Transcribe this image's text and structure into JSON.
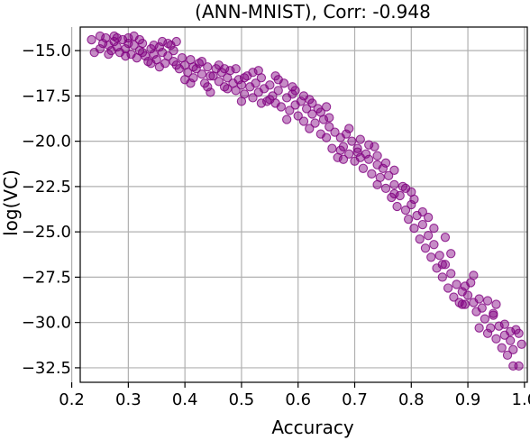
{
  "chart_data": {
    "type": "scatter",
    "title": "(ANN-MNIST), Corr: -0.948",
    "xlabel": "Accuracy",
    "ylabel": "log(VC)",
    "xlim": [
      0.215,
      1.005
    ],
    "ylim": [
      -33.3,
      -13.7
    ],
    "xticks": [
      0.2,
      0.3,
      0.4,
      0.5,
      0.6,
      0.7,
      0.8,
      0.9,
      1.0
    ],
    "xtick_labels": [
      "0.2",
      "0.3",
      "0.4",
      "0.5",
      "0.6",
      "0.7",
      "0.8",
      "0.9",
      "1.0"
    ],
    "yticks": [
      -15.0,
      -17.5,
      -20.0,
      -22.5,
      -25.0,
      -27.5,
      -30.0,
      -32.5
    ],
    "ytick_labels": [
      "−15.0",
      "−17.5",
      "−20.0",
      "−22.5",
      "−25.0",
      "−27.5",
      "−30.0",
      "−32.5"
    ],
    "grid": true,
    "marker_color": "#800080",
    "series": [
      {
        "points": [
          [
            0.235,
            -14.4
          ],
          [
            0.24,
            -15.1
          ],
          [
            0.25,
            -14.9
          ],
          [
            0.255,
            -14.6
          ],
          [
            0.26,
            -14.3
          ],
          [
            0.265,
            -14.7
          ],
          [
            0.27,
            -15.0
          ],
          [
            0.275,
            -14.5
          ],
          [
            0.28,
            -14.8
          ],
          [
            0.285,
            -15.1
          ],
          [
            0.29,
            -14.4
          ],
          [
            0.295,
            -14.9
          ],
          [
            0.3,
            -14.3
          ],
          [
            0.305,
            -15.2
          ],
          [
            0.31,
            -14.7
          ],
          [
            0.315,
            -15.4
          ],
          [
            0.32,
            -15.0
          ],
          [
            0.325,
            -14.6
          ],
          [
            0.33,
            -15.3
          ],
          [
            0.335,
            -15.6
          ],
          [
            0.34,
            -14.9
          ],
          [
            0.345,
            -15.2
          ],
          [
            0.35,
            -15.5
          ],
          [
            0.355,
            -14.8
          ],
          [
            0.36,
            -15.1
          ],
          [
            0.365,
            -15.7
          ],
          [
            0.37,
            -15.3
          ],
          [
            0.375,
            -14.7
          ],
          [
            0.38,
            -15.0
          ],
          [
            0.385,
            -14.5
          ],
          [
            0.39,
            -16.0
          ],
          [
            0.395,
            -15.4
          ],
          [
            0.4,
            -15.8
          ],
          [
            0.405,
            -16.2
          ],
          [
            0.41,
            -15.5
          ],
          [
            0.415,
            -16.5
          ],
          [
            0.42,
            -16.0
          ],
          [
            0.425,
            -15.7
          ],
          [
            0.43,
            -16.3
          ],
          [
            0.435,
            -16.8
          ],
          [
            0.44,
            -15.9
          ],
          [
            0.445,
            -17.3
          ],
          [
            0.45,
            -16.4
          ],
          [
            0.455,
            -16.0
          ],
          [
            0.46,
            -16.7
          ],
          [
            0.465,
            -16.2
          ],
          [
            0.47,
            -17.0
          ],
          [
            0.475,
            -16.5
          ],
          [
            0.48,
            -16.1
          ],
          [
            0.485,
            -16.8
          ],
          [
            0.49,
            -17.2
          ],
          [
            0.495,
            -16.6
          ],
          [
            0.5,
            -16.9
          ],
          [
            0.505,
            -17.4
          ],
          [
            0.51,
            -16.4
          ],
          [
            0.515,
            -17.0
          ],
          [
            0.52,
            -17.6
          ],
          [
            0.525,
            -16.8
          ],
          [
            0.53,
            -17.3
          ],
          [
            0.535,
            -16.5
          ],
          [
            0.54,
            -17.1
          ],
          [
            0.545,
            -17.8
          ],
          [
            0.55,
            -16.9
          ],
          [
            0.555,
            -17.5
          ],
          [
            0.56,
            -17.9
          ],
          [
            0.565,
            -17.2
          ],
          [
            0.57,
            -18.1
          ],
          [
            0.575,
            -16.8
          ],
          [
            0.58,
            -17.6
          ],
          [
            0.585,
            -18.3
          ],
          [
            0.59,
            -17.4
          ],
          [
            0.595,
            -18.0
          ],
          [
            0.6,
            -18.6
          ],
          [
            0.605,
            -17.8
          ],
          [
            0.61,
            -18.9
          ],
          [
            0.615,
            -18.2
          ],
          [
            0.62,
            -19.3
          ],
          [
            0.625,
            -18.5
          ],
          [
            0.63,
            -19.0
          ],
          [
            0.635,
            -18.2
          ],
          [
            0.64,
            -19.6
          ],
          [
            0.645,
            -18.8
          ],
          [
            0.65,
            -19.8
          ],
          [
            0.655,
            -19.2
          ],
          [
            0.66,
            -20.4
          ],
          [
            0.665,
            -19.5
          ],
          [
            0.67,
            -20.9
          ],
          [
            0.675,
            -19.8
          ],
          [
            0.68,
            -20.3
          ],
          [
            0.685,
            -19.6
          ],
          [
            0.69,
            -20.7
          ],
          [
            0.695,
            -20.0
          ],
          [
            0.7,
            -21.1
          ],
          [
            0.705,
            -20.4
          ],
          [
            0.71,
            -19.9
          ],
          [
            0.715,
            -21.5
          ],
          [
            0.72,
            -20.7
          ],
          [
            0.725,
            -21.0
          ],
          [
            0.73,
            -21.8
          ],
          [
            0.735,
            -20.3
          ],
          [
            0.74,
            -21.3
          ],
          [
            0.745,
            -22.0
          ],
          [
            0.75,
            -21.5
          ],
          [
            0.755,
            -22.6
          ],
          [
            0.76,
            -21.9
          ],
          [
            0.765,
            -23.1
          ],
          [
            0.77,
            -22.4
          ],
          [
            0.775,
            -23.6
          ],
          [
            0.78,
            -23.0
          ],
          [
            0.785,
            -22.5
          ],
          [
            0.79,
            -23.8
          ],
          [
            0.795,
            -24.3
          ],
          [
            0.8,
            -23.5
          ],
          [
            0.805,
            -24.8
          ],
          [
            0.81,
            -24.1
          ],
          [
            0.815,
            -25.4
          ],
          [
            0.82,
            -24.6
          ],
          [
            0.825,
            -25.9
          ],
          [
            0.83,
            -25.2
          ],
          [
            0.835,
            -26.4
          ],
          [
            0.84,
            -25.7
          ],
          [
            0.845,
            -27.0
          ],
          [
            0.85,
            -26.3
          ],
          [
            0.855,
            -27.5
          ],
          [
            0.86,
            -26.8
          ],
          [
            0.865,
            -28.1
          ],
          [
            0.87,
            -27.3
          ],
          [
            0.875,
            -28.6
          ],
          [
            0.88,
            -27.9
          ],
          [
            0.885,
            -28.9
          ],
          [
            0.89,
            -28.3
          ],
          [
            0.895,
            -29.0
          ],
          [
            0.9,
            -28.5
          ],
          [
            0.905,
            -27.8
          ],
          [
            0.91,
            -28.9
          ],
          [
            0.915,
            -29.4
          ],
          [
            0.92,
            -28.7
          ],
          [
            0.925,
            -29.2
          ],
          [
            0.93,
            -29.8
          ],
          [
            0.935,
            -28.8
          ],
          [
            0.94,
            -30.3
          ],
          [
            0.945,
            -29.6
          ],
          [
            0.95,
            -30.9
          ],
          [
            0.955,
            -30.2
          ],
          [
            0.96,
            -31.4
          ],
          [
            0.965,
            -30.7
          ],
          [
            0.97,
            -31.8
          ],
          [
            0.975,
            -31.0
          ],
          [
            0.98,
            -31.5
          ],
          [
            0.985,
            -30.4
          ],
          [
            0.99,
            -32.4
          ],
          [
            0.995,
            -31.2
          ],
          [
            0.98,
            -32.4
          ],
          [
            0.965,
            -30.1
          ],
          [
            0.945,
            -29.5
          ],
          [
            0.935,
            -30.6
          ],
          [
            0.91,
            -27.4
          ],
          [
            0.895,
            -28.0
          ],
          [
            0.87,
            -26.2
          ],
          [
            0.855,
            -26.8
          ],
          [
            0.84,
            -24.8
          ],
          [
            0.82,
            -23.9
          ],
          [
            0.805,
            -23.2
          ],
          [
            0.79,
            -22.6
          ],
          [
            0.77,
            -21.6
          ],
          [
            0.755,
            -21.2
          ],
          [
            0.74,
            -20.8
          ],
          [
            0.725,
            -20.2
          ],
          [
            0.705,
            -20.6
          ],
          [
            0.69,
            -19.3
          ],
          [
            0.675,
            -20.5
          ],
          [
            0.655,
            -18.7
          ],
          [
            0.64,
            -18.4
          ],
          [
            0.625,
            -17.9
          ],
          [
            0.61,
            -17.5
          ],
          [
            0.595,
            -17.2
          ],
          [
            0.58,
            -18.8
          ],
          [
            0.565,
            -16.6
          ],
          [
            0.55,
            -17.7
          ],
          [
            0.535,
            -17.9
          ],
          [
            0.52,
            -16.2
          ],
          [
            0.505,
            -16.5
          ],
          [
            0.49,
            -16.0
          ],
          [
            0.475,
            -17.1
          ],
          [
            0.46,
            -15.8
          ],
          [
            0.445,
            -16.4
          ],
          [
            0.43,
            -15.6
          ],
          [
            0.415,
            -15.9
          ],
          [
            0.4,
            -16.6
          ],
          [
            0.385,
            -15.8
          ],
          [
            0.37,
            -14.6
          ],
          [
            0.355,
            -15.9
          ],
          [
            0.34,
            -15.7
          ],
          [
            0.325,
            -15.1
          ],
          [
            0.31,
            -14.2
          ],
          [
            0.295,
            -15.3
          ],
          [
            0.28,
            -14.3
          ],
          [
            0.265,
            -15.2
          ],
          [
            0.25,
            -14.2
          ],
          [
            0.275,
            -14.2
          ],
          [
            0.3,
            -14.6
          ],
          [
            0.32,
            -14.4
          ],
          [
            0.345,
            -14.7
          ],
          [
            0.36,
            -14.5
          ],
          [
            0.38,
            -15.6
          ],
          [
            0.41,
            -16.8
          ],
          [
            0.44,
            -17.0
          ],
          [
            0.47,
            -16.0
          ],
          [
            0.5,
            -17.8
          ],
          [
            0.53,
            -16.1
          ],
          [
            0.56,
            -16.4
          ],
          [
            0.59,
            -17.0
          ],
          [
            0.62,
            -17.7
          ],
          [
            0.65,
            -18.1
          ],
          [
            0.68,
            -21.0
          ],
          [
            0.71,
            -20.9
          ],
          [
            0.74,
            -22.4
          ],
          [
            0.77,
            -22.9
          ],
          [
            0.8,
            -22.8
          ],
          [
            0.83,
            -24.2
          ],
          [
            0.86,
            -25.3
          ],
          [
            0.89,
            -29.0
          ],
          [
            0.92,
            -30.3
          ],
          [
            0.95,
            -29.0
          ],
          [
            0.975,
            -30.5
          ],
          [
            0.99,
            -30.6
          ]
        ]
      }
    ]
  }
}
